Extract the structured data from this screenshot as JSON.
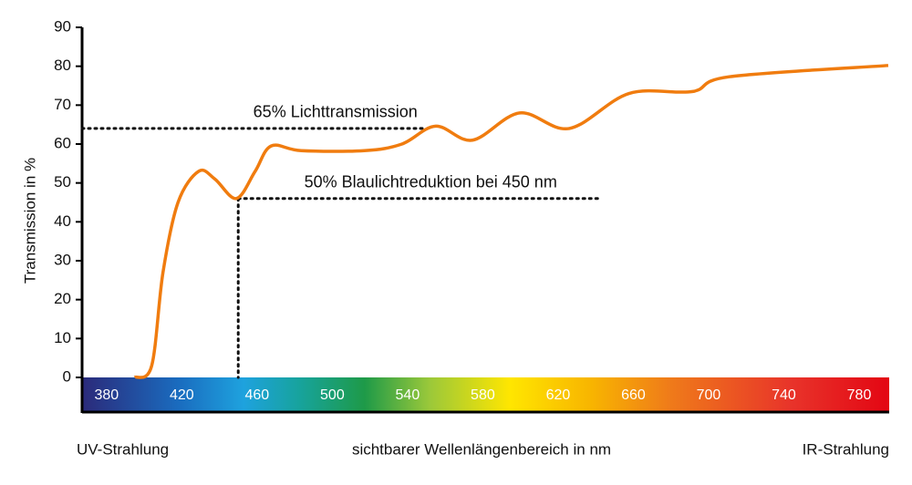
{
  "chart_data": {
    "type": "line",
    "y_label": "Transmission in %",
    "x_label": "sichtbarer Wellenlängenbereich in nm",
    "left_label": "UV-Strahlung",
    "right_label": "IR-Strahlung",
    "xlim": [
      367,
      796
    ],
    "xticks": [
      380,
      420,
      460,
      500,
      540,
      580,
      620,
      660,
      700,
      740,
      780
    ],
    "ylim": [
      0,
      90
    ],
    "yticks": [
      0,
      10,
      20,
      30,
      40,
      50,
      60,
      70,
      80,
      90
    ],
    "series": [
      {
        "color": "#f07c0f",
        "x": [
          395,
          404,
          410,
          418,
          429,
          437.6,
          449,
          459,
          467.5,
          483.5,
          517,
          537,
          555,
          574.5,
          599.6,
          626,
          657.7,
          691.5,
          711,
          795.5
        ],
        "values": [
          0,
          3,
          27,
          45,
          53,
          51,
          46,
          53,
          59.5,
          58.3,
          58.3,
          60,
          64.6,
          61,
          68,
          64,
          73,
          73.5,
          77.3,
          80.2
        ]
      }
    ],
    "annotations": [
      {
        "text": "65% Lichttransmission",
        "y": 64,
        "x_end": 549
      },
      {
        "text": "50% Blaulichtreduktion bei 450 nm",
        "y": 46,
        "x": 450,
        "x_end": 641
      }
    ]
  }
}
